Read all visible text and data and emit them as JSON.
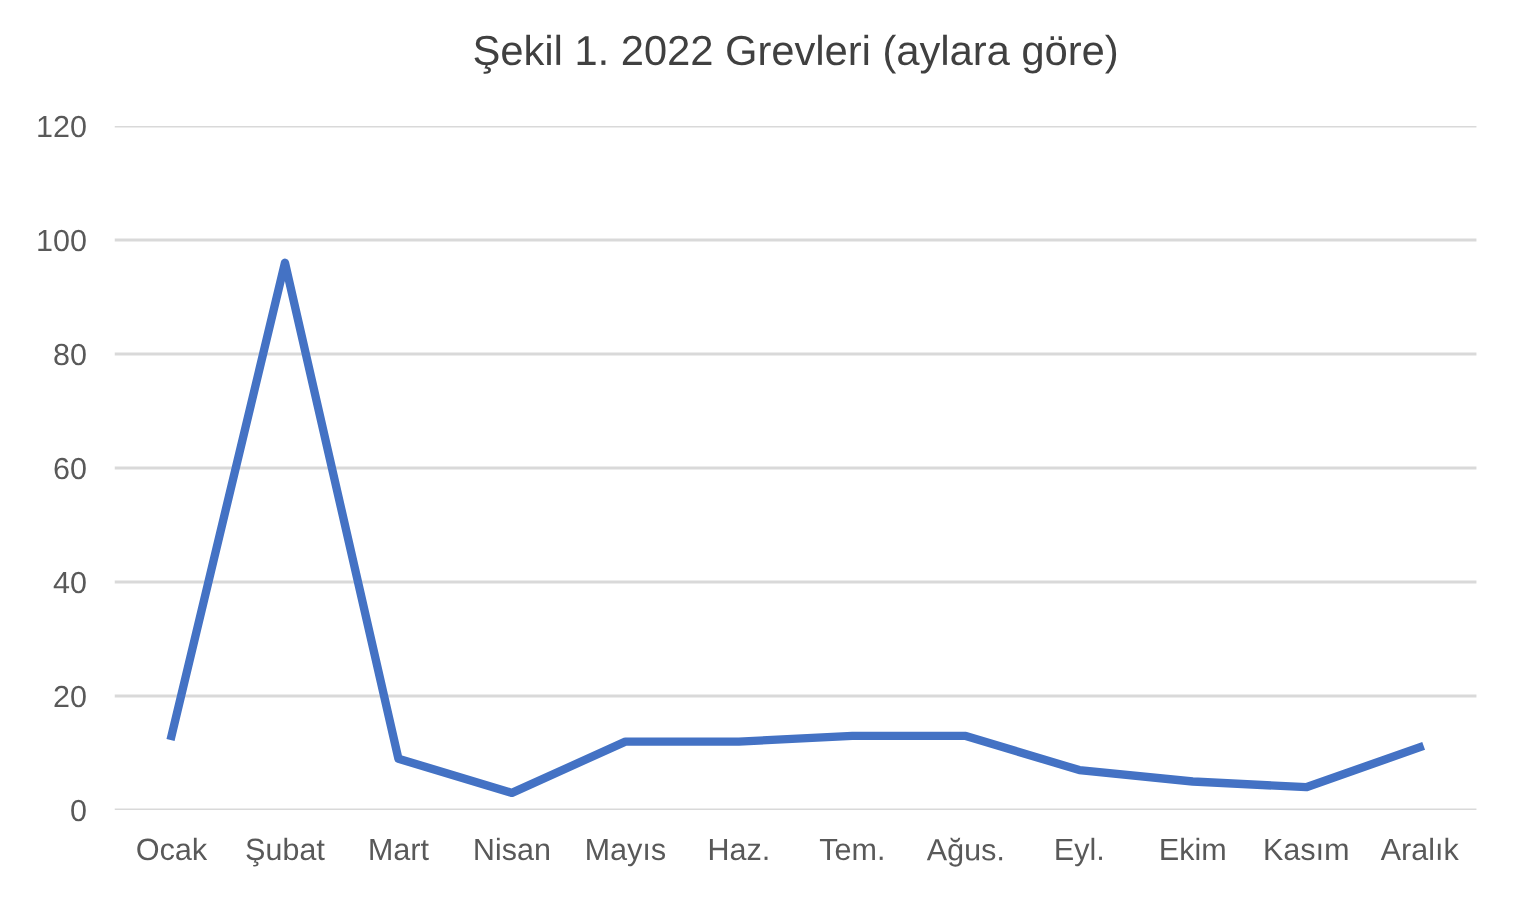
{
  "chart_data": {
    "type": "line",
    "title": "Şekil 1. 2022 Grevleri (aylara göre)",
    "categories": [
      "Ocak",
      "Şubat",
      "Mart",
      "Nisan",
      "Mayıs",
      "Haz.",
      "Tem.",
      "Ağus.",
      "Eyl.",
      "Ekim",
      "Kasım",
      "Aralık"
    ],
    "series": [
      {
        "color": "#4472c4",
        "values": [
          13,
          96,
          9,
          3,
          12,
          12,
          13,
          13,
          7,
          5,
          4,
          11
        ]
      }
    ],
    "ylim": [
      0,
      120
    ],
    "yticks": [
      0,
      20,
      40,
      60,
      80,
      100,
      120
    ],
    "grid": "y",
    "legend": false,
    "marker": "none",
    "line_style": "solid"
  }
}
